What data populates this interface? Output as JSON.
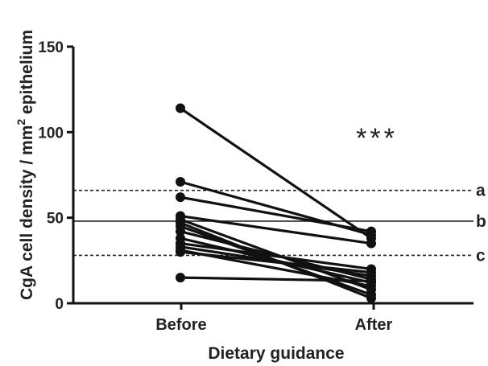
{
  "chart_data": {
    "type": "line",
    "title": "",
    "xlabel": "Dietary guidance",
    "ylabel": "CgA cell density / mm² epithelium",
    "ylabel_parts": {
      "before": "CgA cell density / mm",
      "sup": "2",
      "after": " epithelium"
    },
    "categories": [
      "Before",
      "After"
    ],
    "ylim": [
      0,
      150
    ],
    "yticks": [
      "0",
      "50",
      "100",
      "150"
    ],
    "grid": false,
    "legend": "none",
    "significance": "***",
    "reference_lines": [
      {
        "label": "a",
        "value": 66,
        "style": "dashed"
      },
      {
        "label": "b",
        "value": 48,
        "style": "solid"
      },
      {
        "label": "c",
        "value": 28,
        "style": "dashed"
      }
    ],
    "series": [
      {
        "values": [
          114,
          38
        ]
      },
      {
        "values": [
          71,
          40
        ]
      },
      {
        "values": [
          62,
          42
        ]
      },
      {
        "values": [
          51,
          35
        ]
      },
      {
        "values": [
          49,
          8
        ]
      },
      {
        "values": [
          47,
          3
        ]
      },
      {
        "values": [
          45,
          5
        ]
      },
      {
        "values": [
          42,
          14
        ]
      },
      {
        "values": [
          38,
          12
        ]
      },
      {
        "values": [
          35,
          20
        ]
      },
      {
        "values": [
          33,
          16
        ]
      },
      {
        "values": [
          31,
          10
        ]
      },
      {
        "values": [
          30,
          18
        ]
      },
      {
        "values": [
          15,
          13
        ]
      }
    ],
    "colors": {
      "line": "#111111",
      "marker": "#111111",
      "reference": "#222222"
    }
  }
}
